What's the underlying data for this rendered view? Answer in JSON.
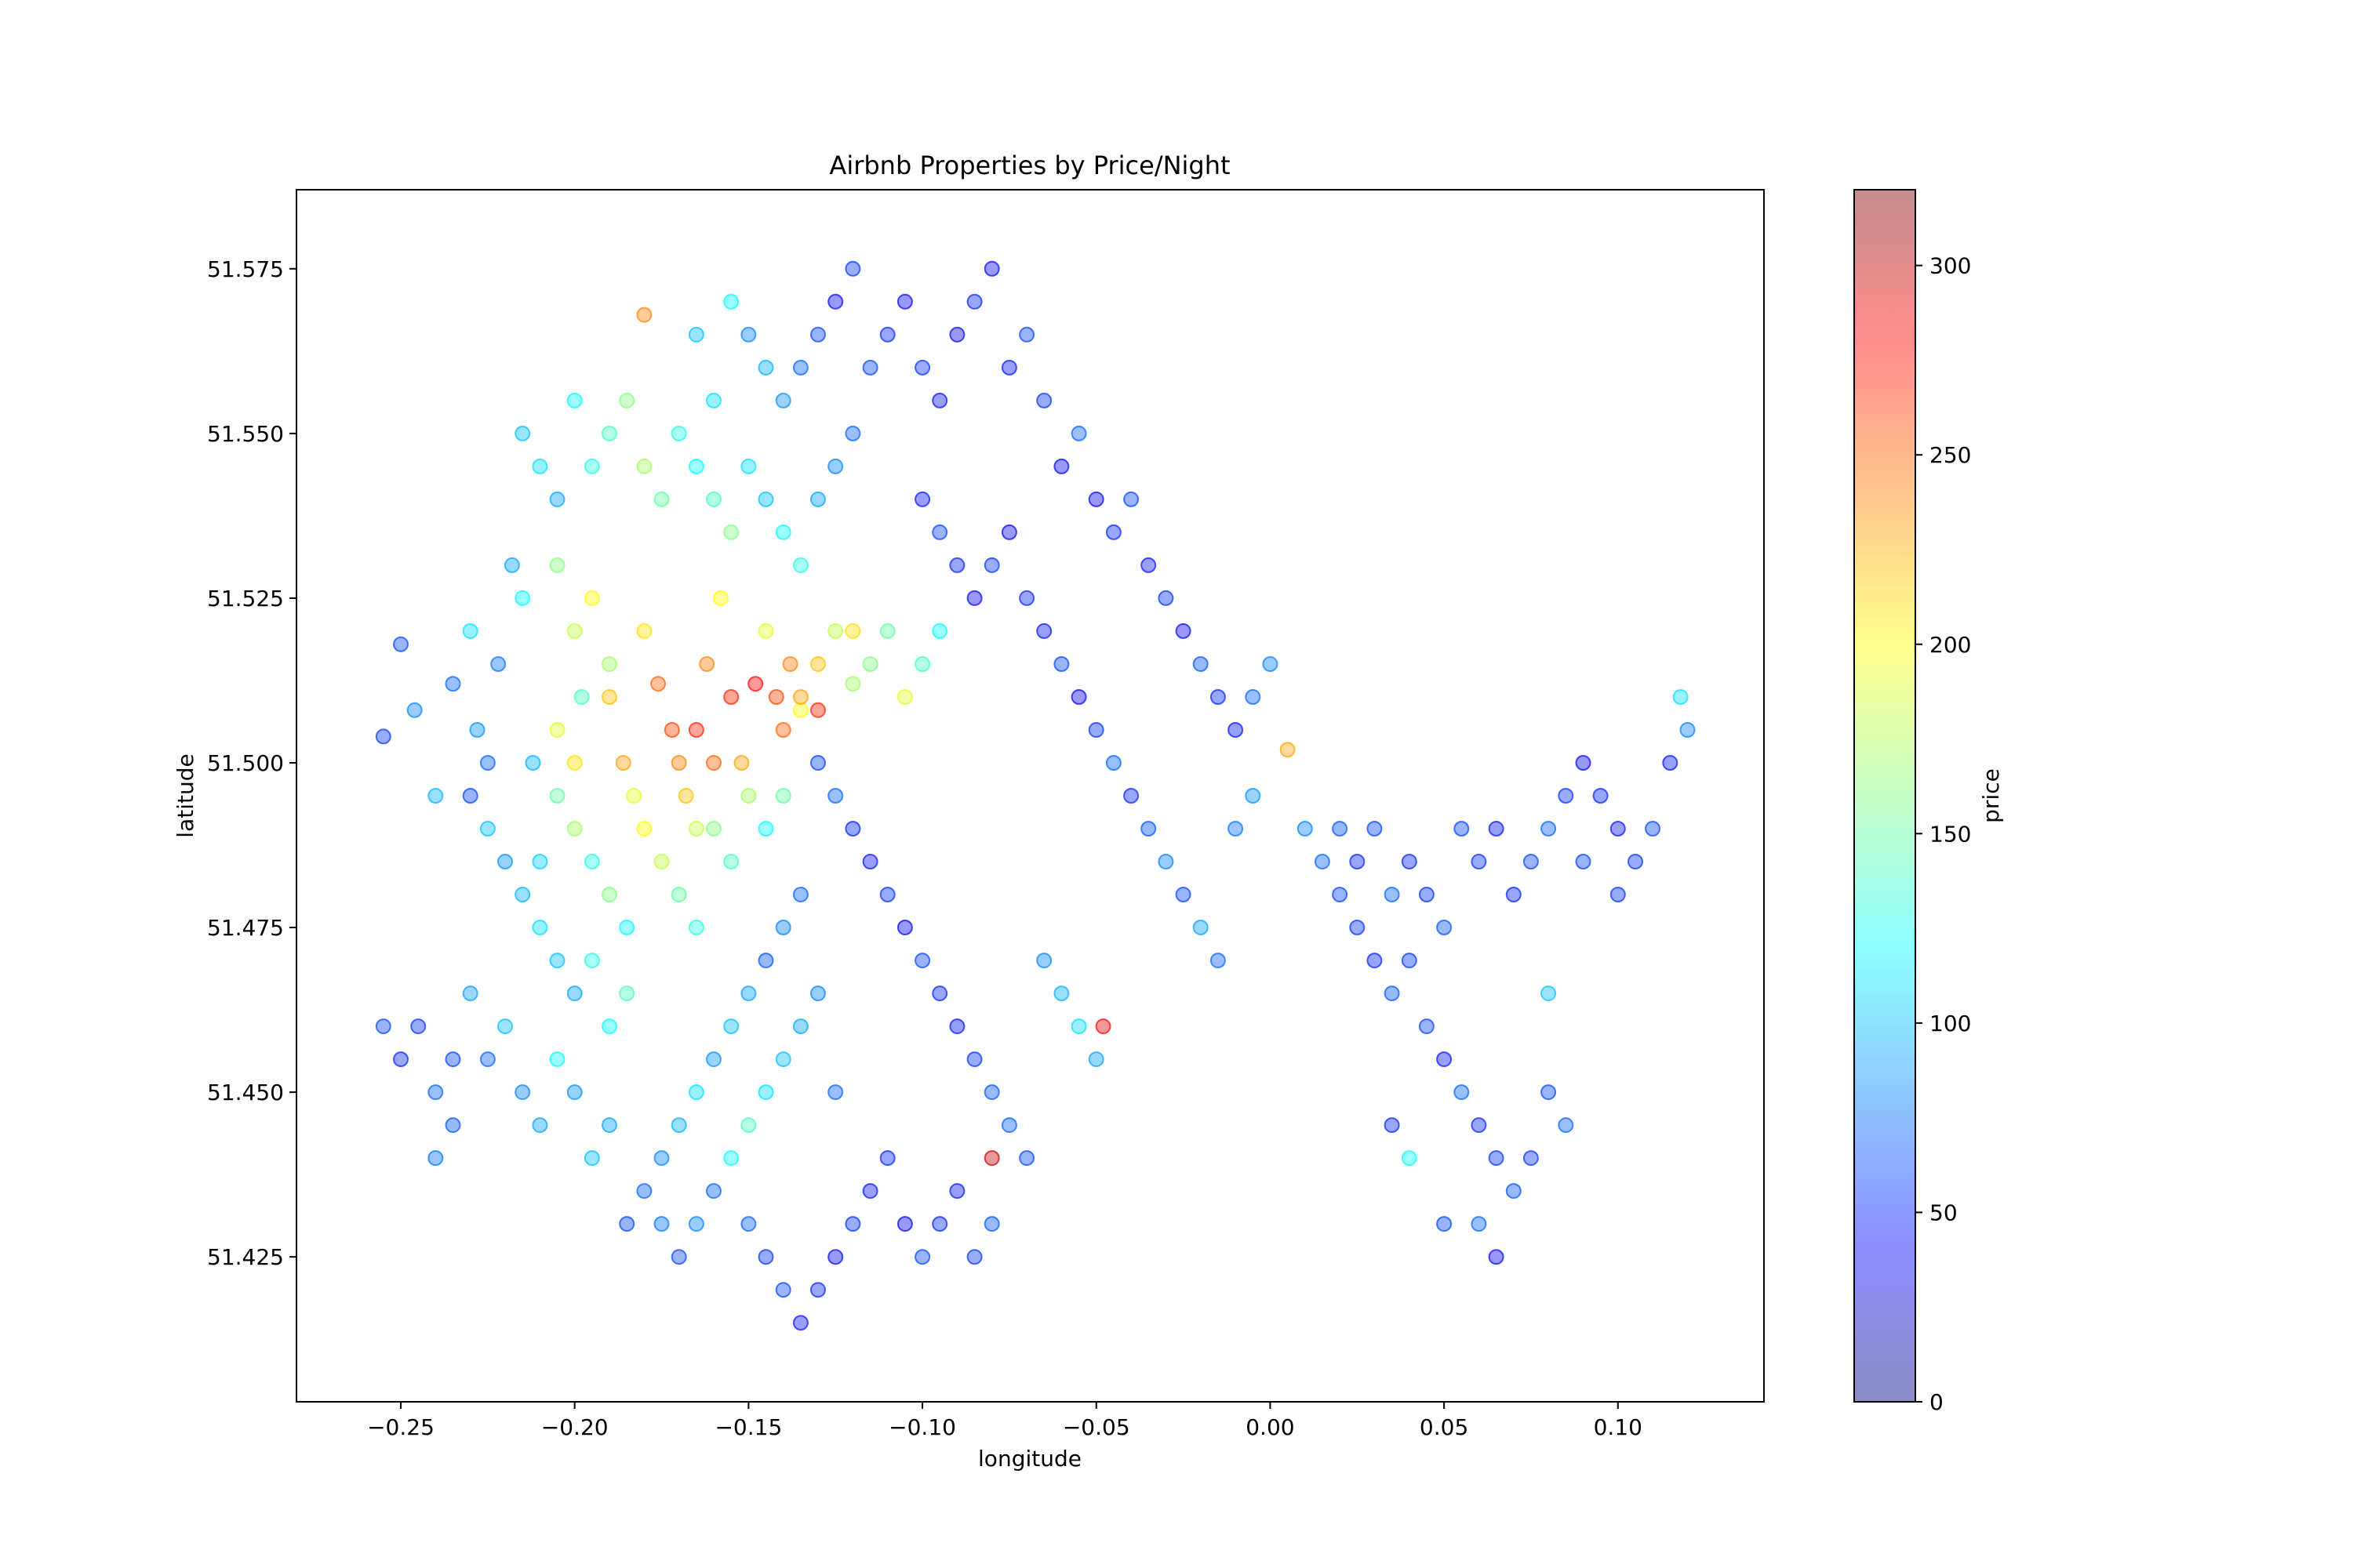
{
  "chart_data": {
    "type": "scatter",
    "title": "Airbnb Properties by Price/Night",
    "xlabel": "longitude",
    "ylabel": "latitude",
    "xlim": [
      -0.28,
      0.142
    ],
    "ylim": [
      51.403,
      51.587
    ],
    "xticks": [
      -0.25,
      -0.2,
      -0.15,
      -0.1,
      -0.05,
      0.0,
      0.05,
      0.1
    ],
    "xtick_labels": [
      "−0.25",
      "−0.20",
      "−0.15",
      "−0.10",
      "−0.05",
      "0.00",
      "0.05",
      "0.10"
    ],
    "yticks": [
      51.425,
      51.45,
      51.475,
      51.5,
      51.525,
      51.55,
      51.575
    ],
    "ytick_labels": [
      "51.425",
      "51.450",
      "51.475",
      "51.500",
      "51.525",
      "51.550",
      "51.575"
    ],
    "grid": false,
    "point_opacity": 0.4,
    "colormap": "jet",
    "colorbar": {
      "label": "price",
      "range": [
        0,
        320
      ],
      "ticks": [
        0,
        50,
        100,
        150,
        200,
        250,
        300
      ],
      "tick_labels": [
        "0",
        "50",
        "100",
        "150",
        "200",
        "250",
        "300"
      ]
    },
    "points": [
      [
        -0.255,
        51.504,
        55
      ],
      [
        -0.25,
        51.518,
        60
      ],
      [
        -0.246,
        51.508,
        80
      ],
      [
        -0.24,
        51.495,
        95
      ],
      [
        -0.235,
        51.512,
        70
      ],
      [
        -0.23,
        51.52,
        110
      ],
      [
        -0.228,
        51.505,
        85
      ],
      [
        -0.225,
        51.49,
        100
      ],
      [
        -0.222,
        51.515,
        75
      ],
      [
        -0.218,
        51.53,
        90
      ],
      [
        -0.215,
        51.525,
        120
      ],
      [
        -0.212,
        51.5,
        95
      ],
      [
        -0.21,
        51.485,
        105
      ],
      [
        -0.205,
        51.53,
        160
      ],
      [
        -0.2,
        51.52,
        180
      ],
      [
        -0.198,
        51.51,
        140
      ],
      [
        -0.195,
        51.525,
        200
      ],
      [
        -0.19,
        51.515,
        170
      ],
      [
        -0.186,
        51.5,
        230
      ],
      [
        -0.183,
        51.495,
        190
      ],
      [
        -0.18,
        51.52,
        210
      ],
      [
        -0.176,
        51.512,
        250
      ],
      [
        -0.172,
        51.505,
        260
      ],
      [
        -0.168,
        51.495,
        220
      ],
      [
        -0.165,
        51.49,
        180
      ],
      [
        -0.162,
        51.515,
        240
      ],
      [
        -0.158,
        51.525,
        200
      ],
      [
        -0.155,
        51.51,
        270
      ],
      [
        -0.152,
        51.5,
        230
      ],
      [
        -0.148,
        51.512,
        280
      ],
      [
        -0.145,
        51.52,
        190
      ],
      [
        -0.142,
        51.51,
        260
      ],
      [
        -0.138,
        51.515,
        240
      ],
      [
        -0.135,
        51.508,
        200
      ],
      [
        -0.13,
        51.515,
        220
      ],
      [
        -0.125,
        51.52,
        180
      ],
      [
        -0.12,
        51.512,
        170
      ],
      [
        -0.115,
        51.515,
        160
      ],
      [
        -0.11,
        51.52,
        150
      ],
      [
        -0.105,
        51.51,
        190
      ],
      [
        -0.1,
        51.515,
        140
      ],
      [
        -0.095,
        51.52,
        120
      ],
      [
        -0.205,
        51.495,
        150
      ],
      [
        -0.2,
        51.49,
        170
      ],
      [
        -0.195,
        51.485,
        130
      ],
      [
        -0.19,
        51.48,
        160
      ],
      [
        -0.185,
        51.475,
        120
      ],
      [
        -0.18,
        51.49,
        200
      ],
      [
        -0.175,
        51.485,
        180
      ],
      [
        -0.17,
        51.48,
        150
      ],
      [
        -0.165,
        51.475,
        130
      ],
      [
        -0.16,
        51.49,
        160
      ],
      [
        -0.155,
        51.485,
        140
      ],
      [
        -0.15,
        51.495,
        170
      ],
      [
        -0.145,
        51.49,
        120
      ],
      [
        -0.14,
        51.495,
        150
      ],
      [
        -0.215,
        51.55,
        100
      ],
      [
        -0.21,
        51.545,
        110
      ],
      [
        -0.205,
        51.54,
        90
      ],
      [
        -0.2,
        51.555,
        120
      ],
      [
        -0.195,
        51.545,
        130
      ],
      [
        -0.19,
        51.55,
        140
      ],
      [
        -0.185,
        51.555,
        160
      ],
      [
        -0.18,
        51.545,
        170
      ],
      [
        -0.175,
        51.54,
        150
      ],
      [
        -0.17,
        51.55,
        130
      ],
      [
        -0.165,
        51.545,
        120
      ],
      [
        -0.16,
        51.54,
        140
      ],
      [
        -0.155,
        51.535,
        160
      ],
      [
        -0.15,
        51.545,
        110
      ],
      [
        -0.145,
        51.54,
        100
      ],
      [
        -0.14,
        51.535,
        120
      ],
      [
        -0.135,
        51.53,
        130
      ],
      [
        -0.13,
        51.54,
        90
      ],
      [
        -0.125,
        51.545,
        80
      ],
      [
        -0.12,
        51.55,
        70
      ],
      [
        -0.115,
        51.56,
        60
      ],
      [
        -0.11,
        51.565,
        50
      ],
      [
        -0.105,
        51.57,
        40
      ],
      [
        -0.1,
        51.56,
        55
      ],
      [
        -0.095,
        51.555,
        45
      ],
      [
        -0.09,
        51.565,
        35
      ],
      [
        -0.085,
        51.57,
        50
      ],
      [
        -0.08,
        51.575,
        40
      ],
      [
        -0.075,
        51.56,
        45
      ],
      [
        -0.07,
        51.565,
        60
      ],
      [
        -0.065,
        51.555,
        55
      ],
      [
        -0.06,
        51.545,
        40
      ],
      [
        -0.055,
        51.55,
        70
      ],
      [
        -0.05,
        51.54,
        35
      ],
      [
        -0.045,
        51.535,
        50
      ],
      [
        -0.04,
        51.54,
        60
      ],
      [
        -0.035,
        51.53,
        45
      ],
      [
        -0.03,
        51.525,
        55
      ],
      [
        -0.025,
        51.52,
        40
      ],
      [
        -0.02,
        51.515,
        65
      ],
      [
        -0.015,
        51.51,
        50
      ],
      [
        -0.01,
        51.505,
        45
      ],
      [
        -0.005,
        51.51,
        70
      ],
      [
        0.0,
        51.515,
        80
      ],
      [
        -0.13,
        51.565,
        60
      ],
      [
        -0.125,
        51.57,
        40
      ],
      [
        -0.12,
        51.575,
        55
      ],
      [
        -0.135,
        51.56,
        70
      ],
      [
        -0.14,
        51.555,
        85
      ],
      [
        -0.145,
        51.56,
        95
      ],
      [
        -0.15,
        51.565,
        80
      ],
      [
        -0.155,
        51.57,
        120
      ],
      [
        -0.16,
        51.555,
        110
      ],
      [
        -0.165,
        51.565,
        100
      ],
      [
        -0.1,
        51.54,
        45
      ],
      [
        -0.095,
        51.535,
        60
      ],
      [
        -0.09,
        51.53,
        50
      ],
      [
        -0.085,
        51.525,
        40
      ],
      [
        -0.08,
        51.53,
        55
      ],
      [
        -0.075,
        51.535,
        35
      ],
      [
        -0.07,
        51.525,
        50
      ],
      [
        -0.065,
        51.52,
        45
      ],
      [
        -0.06,
        51.515,
        60
      ],
      [
        -0.055,
        51.51,
        40
      ],
      [
        -0.05,
        51.505,
        55
      ],
      [
        -0.045,
        51.5,
        70
      ],
      [
        -0.04,
        51.495,
        50
      ],
      [
        -0.035,
        51.49,
        65
      ],
      [
        -0.03,
        51.485,
        80
      ],
      [
        -0.025,
        51.48,
        60
      ],
      [
        -0.02,
        51.475,
        90
      ],
      [
        -0.015,
        51.47,
        70
      ],
      [
        -0.01,
        51.49,
        75
      ],
      [
        -0.005,
        51.495,
        85
      ],
      [
        -0.13,
        51.5,
        60
      ],
      [
        -0.125,
        51.495,
        70
      ],
      [
        -0.12,
        51.49,
        50
      ],
      [
        -0.115,
        51.485,
        45
      ],
      [
        -0.11,
        51.48,
        55
      ],
      [
        -0.105,
        51.475,
        40
      ],
      [
        -0.1,
        51.47,
        60
      ],
      [
        -0.095,
        51.465,
        50
      ],
      [
        -0.09,
        51.46,
        45
      ],
      [
        -0.085,
        51.455,
        55
      ],
      [
        -0.08,
        51.45,
        65
      ],
      [
        -0.075,
        51.445,
        70
      ],
      [
        -0.07,
        51.44,
        60
      ],
      [
        -0.065,
        51.47,
        80
      ],
      [
        -0.06,
        51.465,
        95
      ],
      [
        -0.055,
        51.46,
        110
      ],
      [
        -0.05,
        51.455,
        90
      ],
      [
        -0.135,
        51.48,
        70
      ],
      [
        -0.14,
        51.475,
        80
      ],
      [
        -0.145,
        51.47,
        65
      ],
      [
        -0.15,
        51.465,
        90
      ],
      [
        -0.155,
        51.46,
        100
      ],
      [
        -0.16,
        51.455,
        85
      ],
      [
        -0.165,
        51.45,
        110
      ],
      [
        -0.17,
        51.445,
        95
      ],
      [
        -0.175,
        51.44,
        80
      ],
      [
        -0.18,
        51.435,
        70
      ],
      [
        -0.185,
        51.43,
        60
      ],
      [
        -0.19,
        51.445,
        90
      ],
      [
        -0.195,
        51.44,
        100
      ],
      [
        -0.2,
        51.45,
        85
      ],
      [
        -0.205,
        51.455,
        120
      ],
      [
        -0.21,
        51.445,
        90
      ],
      [
        -0.215,
        51.45,
        80
      ],
      [
        -0.22,
        51.46,
        100
      ],
      [
        -0.225,
        51.455,
        70
      ],
      [
        -0.23,
        51.465,
        90
      ],
      [
        -0.235,
        51.455,
        60
      ],
      [
        -0.24,
        51.45,
        70
      ],
      [
        -0.245,
        51.46,
        55
      ],
      [
        -0.25,
        51.455,
        50
      ],
      [
        -0.255,
        51.46,
        60
      ],
      [
        -0.24,
        51.44,
        75
      ],
      [
        -0.235,
        51.445,
        65
      ],
      [
        -0.15,
        51.43,
        70
      ],
      [
        -0.145,
        51.425,
        55
      ],
      [
        -0.14,
        51.42,
        60
      ],
      [
        -0.135,
        51.415,
        45
      ],
      [
        -0.13,
        51.42,
        50
      ],
      [
        -0.125,
        51.425,
        40
      ],
      [
        -0.12,
        51.43,
        55
      ],
      [
        -0.115,
        51.435,
        45
      ],
      [
        -0.11,
        51.44,
        50
      ],
      [
        -0.105,
        51.43,
        40
      ],
      [
        -0.1,
        51.425,
        60
      ],
      [
        -0.095,
        51.43,
        50
      ],
      [
        -0.09,
        51.435,
        45
      ],
      [
        -0.085,
        51.425,
        55
      ],
      [
        -0.08,
        51.43,
        65
      ],
      [
        -0.16,
        51.435,
        70
      ],
      [
        -0.165,
        51.43,
        80
      ],
      [
        -0.17,
        51.425,
        60
      ],
      [
        -0.175,
        51.43,
        75
      ],
      [
        -0.155,
        51.44,
        120
      ],
      [
        -0.15,
        51.445,
        140
      ],
      [
        -0.145,
        51.45,
        110
      ],
      [
        -0.14,
        51.455,
        100
      ],
      [
        -0.135,
        51.46,
        90
      ],
      [
        -0.13,
        51.465,
        80
      ],
      [
        -0.125,
        51.45,
        70
      ],
      [
        0.01,
        51.49,
        80
      ],
      [
        0.015,
        51.485,
        70
      ],
      [
        0.02,
        51.48,
        60
      ],
      [
        0.025,
        51.475,
        55
      ],
      [
        0.03,
        51.47,
        50
      ],
      [
        0.035,
        51.465,
        65
      ],
      [
        0.04,
        51.47,
        55
      ],
      [
        0.045,
        51.46,
        60
      ],
      [
        0.05,
        51.455,
        45
      ],
      [
        0.055,
        51.45,
        70
      ],
      [
        0.06,
        51.445,
        50
      ],
      [
        0.065,
        51.44,
        55
      ],
      [
        0.07,
        51.435,
        65
      ],
      [
        0.055,
        51.49,
        60
      ],
      [
        0.06,
        51.485,
        55
      ],
      [
        0.065,
        51.49,
        45
      ],
      [
        0.07,
        51.48,
        50
      ],
      [
        0.075,
        51.485,
        60
      ],
      [
        0.08,
        51.49,
        70
      ],
      [
        0.085,
        51.495,
        55
      ],
      [
        0.09,
        51.5,
        40
      ],
      [
        0.095,
        51.495,
        50
      ],
      [
        0.1,
        51.49,
        45
      ],
      [
        0.105,
        51.485,
        55
      ],
      [
        0.11,
        51.49,
        60
      ],
      [
        0.115,
        51.5,
        45
      ],
      [
        0.12,
        51.505,
        80
      ],
      [
        0.118,
        51.51,
        110
      ],
      [
        0.1,
        51.48,
        55
      ],
      [
        0.09,
        51.485,
        60
      ],
      [
        0.05,
        51.475,
        65
      ],
      [
        0.045,
        51.48,
        55
      ],
      [
        0.04,
        51.485,
        50
      ],
      [
        0.035,
        51.48,
        70
      ],
      [
        0.03,
        51.49,
        60
      ],
      [
        0.025,
        51.485,
        50
      ],
      [
        0.02,
        51.49,
        65
      ],
      [
        0.05,
        51.43,
        60
      ],
      [
        0.06,
        51.43,
        70
      ],
      [
        0.065,
        51.425,
        40
      ],
      [
        0.04,
        51.44,
        120
      ],
      [
        0.035,
        51.445,
        50
      ],
      [
        0.075,
        51.44,
        55
      ],
      [
        0.08,
        51.45,
        60
      ],
      [
        0.085,
        51.445,
        70
      ],
      [
        0.08,
        51.465,
        100
      ],
      [
        -0.18,
        51.568,
        240
      ],
      [
        -0.048,
        51.46,
        280
      ],
      [
        -0.08,
        51.44,
        300
      ],
      [
        0.005,
        51.502,
        230
      ],
      [
        -0.16,
        51.5,
        250
      ],
      [
        -0.165,
        51.505,
        270
      ],
      [
        -0.17,
        51.5,
        240
      ],
      [
        -0.2,
        51.5,
        210
      ],
      [
        -0.205,
        51.505,
        190
      ],
      [
        -0.19,
        51.51,
        220
      ],
      [
        -0.14,
        51.505,
        250
      ],
      [
        -0.135,
        51.51,
        230
      ],
      [
        -0.13,
        51.508,
        270
      ],
      [
        -0.12,
        51.52,
        210
      ],
      [
        -0.225,
        51.5,
        70
      ],
      [
        -0.23,
        51.495,
        60
      ],
      [
        -0.22,
        51.485,
        85
      ],
      [
        -0.215,
        51.48,
        95
      ],
      [
        -0.21,
        51.475,
        110
      ],
      [
        -0.205,
        51.47,
        100
      ],
      [
        -0.2,
        51.465,
        90
      ],
      [
        -0.195,
        51.47,
        130
      ],
      [
        -0.19,
        51.46,
        120
      ],
      [
        -0.185,
        51.465,
        140
      ]
    ]
  }
}
